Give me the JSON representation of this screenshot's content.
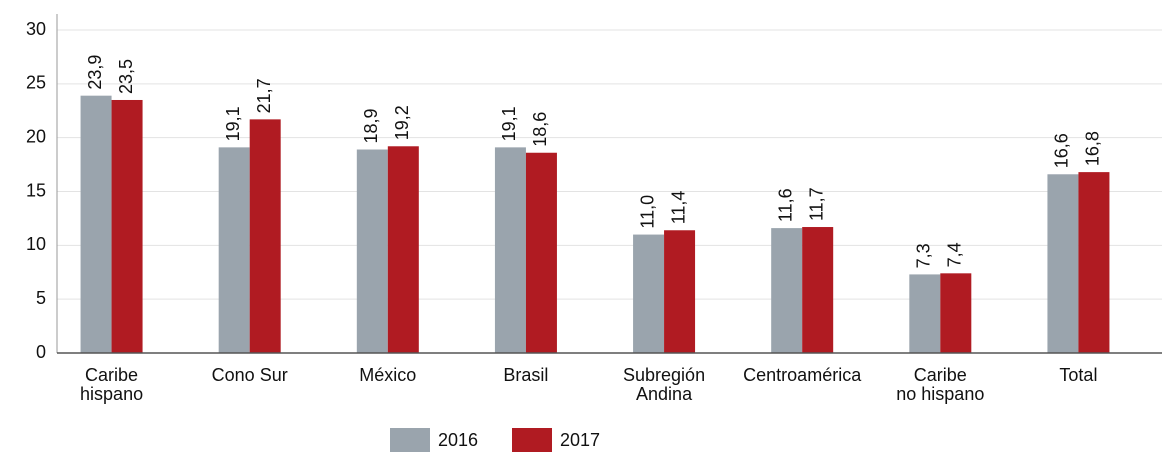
{
  "chart_data": {
    "type": "bar",
    "categories": [
      "Caribe\nhispano",
      "Cono Sur",
      "México",
      "Brasil",
      "Subregión\nAndina",
      "Centroamérica",
      "Caribe\nno hispano",
      "Total"
    ],
    "series": [
      {
        "name": "2016",
        "color": "#9aa4ad",
        "values": [
          23.9,
          19.1,
          18.9,
          19.1,
          11.0,
          11.6,
          7.3,
          16.6
        ],
        "value_labels": [
          "23,9",
          "19,1",
          "18,9",
          "19,1",
          "11,0",
          "11,6",
          "7,3",
          "16,6"
        ]
      },
      {
        "name": "2017",
        "color": "#b01b22",
        "values": [
          23.5,
          21.7,
          19.2,
          18.6,
          11.4,
          11.7,
          7.4,
          16.8
        ],
        "value_labels": [
          "23,5",
          "21,7",
          "19,2",
          "18,6",
          "11,4",
          "11,7",
          "7,4",
          "16,8"
        ]
      }
    ],
    "ylim": [
      0,
      30
    ],
    "yticks": [
      0,
      5,
      10,
      15,
      20,
      25,
      30
    ],
    "grid": true
  }
}
